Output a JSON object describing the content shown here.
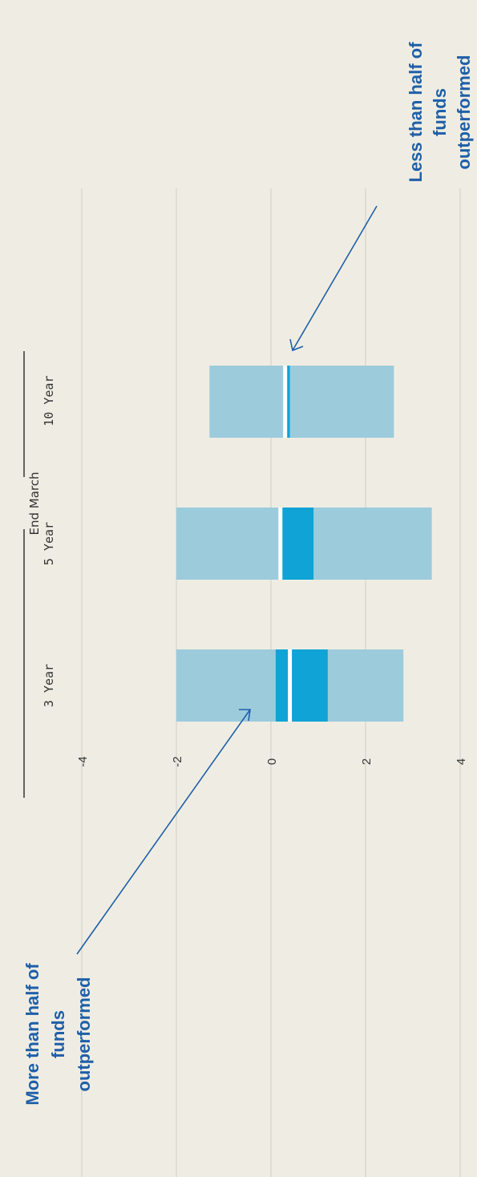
{
  "chart_data": {
    "type": "bar",
    "orientation": "horizontal-floating-range",
    "rotated": true,
    "group_label": "End March",
    "categories": [
      "3 Year",
      "5 Year",
      "10 Year"
    ],
    "value_axis": {
      "ticks": [
        4,
        2,
        0,
        -2,
        -4
      ],
      "range": [
        -4,
        4.2
      ],
      "grid": true
    },
    "series": [
      {
        "name": "",
        "ranges": [
          [
            -2.0,
            2.8
          ],
          [
            -2.0,
            3.4
          ],
          [
            -1.3,
            2.6
          ]
        ]
      },
      {
        "name": "",
        "ranges": [
          [
            0.1,
            1.2
          ],
          [
            0.2,
            0.9
          ],
          [
            0.3,
            0.4
          ]
        ]
      }
    ],
    "medians": [
      0.4,
      0.2,
      0.3
    ],
    "annotations": [
      {
        "lines": [
          "More than half of",
          "funds",
          "outperformed"
        ]
      },
      {
        "lines": [
          "Less than half of",
          "funds",
          "outperformed"
        ]
      }
    ],
    "colors": {
      "outer": "#9ccbdc",
      "inner": "#0fa3d6",
      "median": "#ffffff",
      "annotation": "#1f5fa8"
    }
  }
}
